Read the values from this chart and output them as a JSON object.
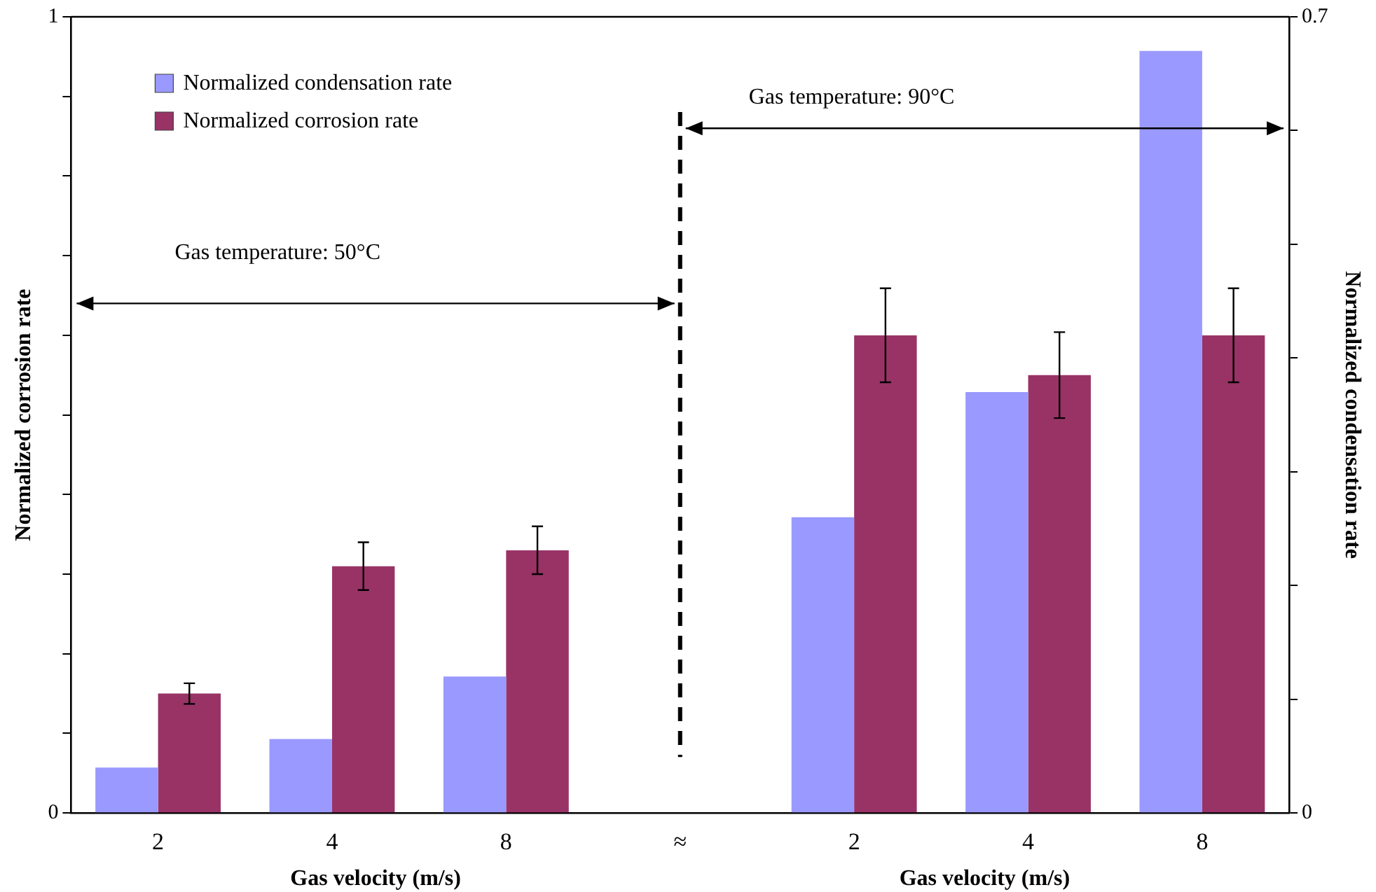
{
  "chart_data": {
    "type": "bar",
    "xlabel": "Gas velocity (m/s)",
    "ylabel": "Normalized corrosion rate",
    "y2label": "Normalized condensation rate",
    "categories": [
      "2",
      "4",
      "8",
      "≈",
      "2",
      "4",
      "8"
    ],
    "series": [
      {
        "name": "Normalized condensation rate",
        "color": "#9999ff",
        "axis": "y2",
        "values": [
          0.04,
          0.065,
          0.12,
          null,
          0.26,
          0.37,
          0.67
        ]
      },
      {
        "name": "Normalized corrosion rate",
        "color": "#993366",
        "axis": "y",
        "values": [
          0.15,
          0.31,
          0.33,
          null,
          0.6,
          0.55,
          0.6
        ],
        "errors": [
          0.013,
          0.03,
          0.03,
          null,
          0.059,
          0.054,
          0.059
        ]
      }
    ],
    "ylim": [
      0,
      1
    ],
    "yticks": [
      0,
      {
        "value": 0.1,
        "label": null
      },
      {
        "value": 0.2,
        "label": null
      },
      {
        "value": 0.3,
        "label": null
      },
      {
        "value": 0.4,
        "label": null
      },
      {
        "value": 0.5,
        "label": null
      },
      {
        "value": 0.6,
        "label": null
      },
      {
        "value": 0.7,
        "label": null
      },
      {
        "value": 0.8,
        "label": null
      },
      {
        "value": 0.9,
        "label": null
      },
      1
    ],
    "y2lim": [
      0,
      0.7
    ],
    "y2ticks": [
      0,
      {
        "value": 0.1,
        "label": null
      },
      {
        "value": 0.2,
        "label": null
      },
      {
        "value": 0.3,
        "label": null
      },
      {
        "value": 0.4,
        "label": null
      },
      {
        "value": 0.5,
        "label": null
      },
      {
        "value": 0.6,
        "label": null
      },
      0.7
    ],
    "ref_lines": [
      {
        "axis": "x",
        "value": "≈",
        "line_style": "dashed",
        "color": "#000000"
      }
    ],
    "annotations": [
      "Gas temperature: 50°C",
      "Gas temperature: 90°C"
    ],
    "legend": "top left",
    "grid": false
  }
}
